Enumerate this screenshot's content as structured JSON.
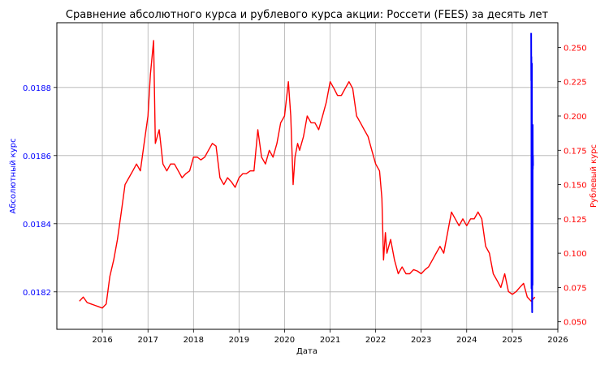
{
  "chart_data": {
    "type": "line",
    "title": "Сравнение абсолютного курса и рублевого курса акции: Россети (FEES) за десять лет",
    "xlabel": "Дата",
    "ylabel_left": "Абсолютный курс",
    "ylabel_right": "Рублевый курс",
    "x_ticks": [
      "2016",
      "2017",
      "2018",
      "2019",
      "2020",
      "2021",
      "2022",
      "2023",
      "2024",
      "2025",
      "2026"
    ],
    "y_left_ticks": [
      "0.0182",
      "0.0184",
      "0.0186",
      "0.0188"
    ],
    "y_right_ticks": [
      "0.050",
      "0.075",
      "0.100",
      "0.125",
      "0.150",
      "0.175",
      "0.200",
      "0.225",
      "0.250"
    ],
    "xlim": [
      "2015-01-01",
      "2026-01-01"
    ],
    "ylim_left": [
      0.01809,
      0.01899
    ],
    "ylim_right": [
      0.0445,
      0.268
    ],
    "grid": true,
    "series": [
      {
        "axis": "left",
        "color": "#0000ff",
        "x": [
          "2025-06-01",
          "2025-06-02",
          "2025-06-03",
          "2025-06-04",
          "2025-06-05",
          "2025-06-06",
          "2025-06-07",
          "2025-06-08",
          "2025-06-09",
          "2025-06-10",
          "2025-06-11",
          "2025-06-12",
          "2025-06-13",
          "2025-06-14",
          "2025-06-15",
          "2025-06-16"
        ],
        "values": [
          0.01896,
          0.01882,
          0.01889,
          0.01821,
          0.01878,
          0.01824,
          0.01887,
          0.01818,
          0.01814,
          0.01832,
          0.01869,
          0.01822,
          0.01869,
          0.01856,
          0.0186,
          0.01857
        ]
      },
      {
        "axis": "right",
        "color": "#ff0000",
        "x": [
          "2015-07-01",
          "2015-08-01",
          "2015-09-01",
          "2015-10-01",
          "2015-11-01",
          "2015-12-01",
          "2016-01-01",
          "2016-02-01",
          "2016-03-01",
          "2016-04-01",
          "2016-05-01",
          "2016-06-01",
          "2016-07-01",
          "2016-08-01",
          "2016-09-01",
          "2016-10-01",
          "2016-11-01",
          "2016-12-01",
          "2017-01-01",
          "2017-01-20",
          "2017-02-15",
          "2017-03-01",
          "2017-04-01",
          "2017-05-01",
          "2017-06-01",
          "2017-07-01",
          "2017-08-01",
          "2017-09-01",
          "2017-10-01",
          "2017-11-01",
          "2017-12-01",
          "2018-01-01",
          "2018-02-01",
          "2018-03-01",
          "2018-04-01",
          "2018-05-01",
          "2018-06-01",
          "2018-07-01",
          "2018-08-01",
          "2018-09-01",
          "2018-10-01",
          "2018-11-01",
          "2018-12-01",
          "2019-01-01",
          "2019-02-01",
          "2019-03-01",
          "2019-04-01",
          "2019-05-01",
          "2019-06-01",
          "2019-07-01",
          "2019-08-01",
          "2019-09-01",
          "2019-10-01",
          "2019-11-01",
          "2019-12-01",
          "2020-01-01",
          "2020-02-01",
          "2020-02-20",
          "2020-03-10",
          "2020-03-25",
          "2020-04-15",
          "2020-05-01",
          "2020-06-01",
          "2020-07-01",
          "2020-08-01",
          "2020-09-01",
          "2020-10-01",
          "2020-11-01",
          "2020-12-01",
          "2021-01-01",
          "2021-02-01",
          "2021-03-01",
          "2021-04-01",
          "2021-05-01",
          "2021-06-01",
          "2021-07-01",
          "2021-08-01",
          "2021-09-01",
          "2021-10-01",
          "2021-11-01",
          "2021-12-01",
          "2022-01-01",
          "2022-02-01",
          "2022-02-20",
          "2022-03-05",
          "2022-03-20",
          "2022-04-01",
          "2022-05-01",
          "2022-06-01",
          "2022-07-01",
          "2022-08-01",
          "2022-09-01",
          "2022-10-01",
          "2022-11-01",
          "2022-12-01",
          "2023-01-01",
          "2023-02-01",
          "2023-03-01",
          "2023-04-01",
          "2023-05-01",
          "2023-06-01",
          "2023-07-01",
          "2023-08-01",
          "2023-09-01",
          "2023-10-01",
          "2023-11-01",
          "2023-12-01",
          "2024-01-01",
          "2024-02-01",
          "2024-03-01",
          "2024-04-01",
          "2024-05-01",
          "2024-06-01",
          "2024-07-01",
          "2024-08-01",
          "2024-09-01",
          "2024-10-01",
          "2024-11-01",
          "2024-12-01",
          "2025-01-01",
          "2025-02-01",
          "2025-03-01",
          "2025-04-01",
          "2025-05-01",
          "2025-06-01",
          "2025-07-01"
        ],
        "values": [
          0.065,
          0.068,
          0.064,
          0.063,
          0.062,
          0.061,
          0.06,
          0.063,
          0.083,
          0.095,
          0.11,
          0.13,
          0.15,
          0.155,
          0.16,
          0.165,
          0.16,
          0.18,
          0.2,
          0.23,
          0.255,
          0.18,
          0.19,
          0.165,
          0.16,
          0.165,
          0.165,
          0.16,
          0.155,
          0.158,
          0.16,
          0.17,
          0.17,
          0.168,
          0.17,
          0.175,
          0.18,
          0.178,
          0.155,
          0.15,
          0.155,
          0.152,
          0.148,
          0.155,
          0.158,
          0.158,
          0.16,
          0.16,
          0.19,
          0.17,
          0.165,
          0.175,
          0.17,
          0.18,
          0.195,
          0.2,
          0.225,
          0.2,
          0.15,
          0.17,
          0.18,
          0.175,
          0.185,
          0.2,
          0.195,
          0.195,
          0.19,
          0.2,
          0.21,
          0.225,
          0.22,
          0.215,
          0.215,
          0.22,
          0.225,
          0.22,
          0.2,
          0.195,
          0.19,
          0.185,
          0.175,
          0.165,
          0.16,
          0.14,
          0.095,
          0.115,
          0.1,
          0.11,
          0.095,
          0.085,
          0.09,
          0.085,
          0.085,
          0.088,
          0.087,
          0.085,
          0.088,
          0.09,
          0.095,
          0.1,
          0.105,
          0.1,
          0.115,
          0.13,
          0.125,
          0.12,
          0.125,
          0.12,
          0.125,
          0.125,
          0.13,
          0.125,
          0.105,
          0.1,
          0.085,
          0.08,
          0.075,
          0.085,
          0.072,
          0.07,
          0.072,
          0.075,
          0.078,
          0.068,
          0.065,
          0.068
        ]
      }
    ]
  }
}
